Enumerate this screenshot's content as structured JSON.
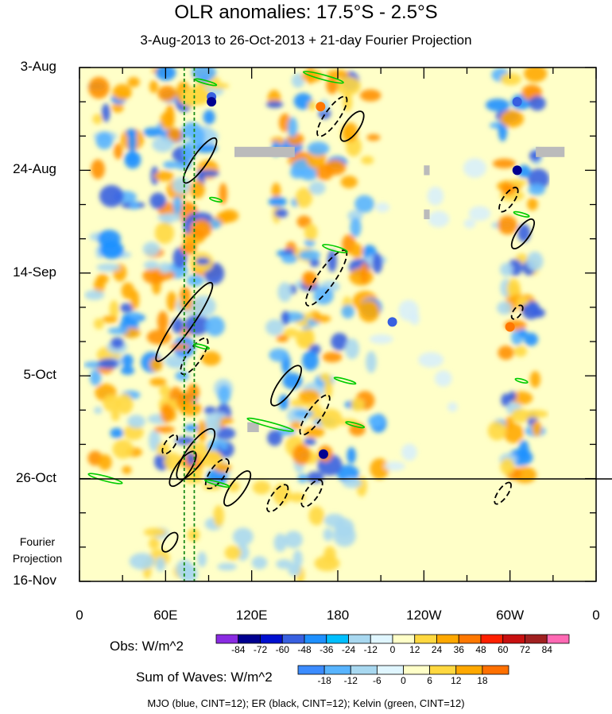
{
  "title": "OLR anomalies: 17.5°S - 2.5°S",
  "subtitle": "3-Aug-2013 to 26-Oct-2013 + 21-day Fourier Projection",
  "fourier_label": [
    "Fourier",
    "Projection"
  ],
  "footer": "MJO (blue, CINT=12); ER (black, CINT=12); Kelvin (green, CINT=12)",
  "chart_data": {
    "type": "heatmap",
    "xlabel": "",
    "ylabel": "",
    "x_ticks": [
      "0",
      "60E",
      "120E",
      "180",
      "120W",
      "60W",
      "0"
    ],
    "x_range_deg_east": [
      0,
      360
    ],
    "y_ticks": [
      "3-Aug",
      "24-Aug",
      "14-Sep",
      "5-Oct",
      "26-Oct",
      "16-Nov"
    ],
    "y_tick_day": [
      0,
      21,
      42,
      63,
      84,
      105
    ],
    "y_range_day": [
      0,
      105
    ],
    "observation_end": "26-Oct",
    "grid": false,
    "colorbars": [
      {
        "title": "Obs: W/m^2",
        "levels": [
          "-84",
          "-72",
          "-60",
          "-48",
          "-36",
          "-24",
          "-12",
          "0",
          "12",
          "24",
          "36",
          "48",
          "60",
          "72",
          "84"
        ],
        "colors": [
          "#8a2be2",
          "#000090",
          "#0010d0",
          "#3860e0",
          "#1e90ff",
          "#00bfff",
          "#a8d8f0",
          "#e0f6ff",
          "#ffffc8",
          "#ffd840",
          "#ffa800",
          "#ff7800",
          "#ff2000",
          "#c81010",
          "#a02020",
          "#ff69b4"
        ]
      },
      {
        "title": "Sum of Waves: W/m^2",
        "levels": [
          "-18",
          "-12",
          "-6",
          "0",
          "6",
          "12",
          "18"
        ],
        "colors": [
          "#3c8cff",
          "#58b4ff",
          "#a8d8f0",
          "#e0f6ff",
          "#ffffc8",
          "#ffd840",
          "#ffa800",
          "#ff7000"
        ]
      }
    ],
    "wave_overlays": [
      {
        "wave": "MJO",
        "color": "blue",
        "cint": 12
      },
      {
        "wave": "ER",
        "color": "black",
        "cint": 12
      },
      {
        "wave": "Kelvin",
        "color": "green",
        "cint": 12
      }
    ],
    "reference_lines_deg_east": [
      73,
      80
    ],
    "colors": {
      "mjo": "#0000ff",
      "er": "#000000",
      "kelvin": "#00cc00",
      "missing": "#bbbbbb",
      "reference": "#1a8c1a"
    }
  }
}
